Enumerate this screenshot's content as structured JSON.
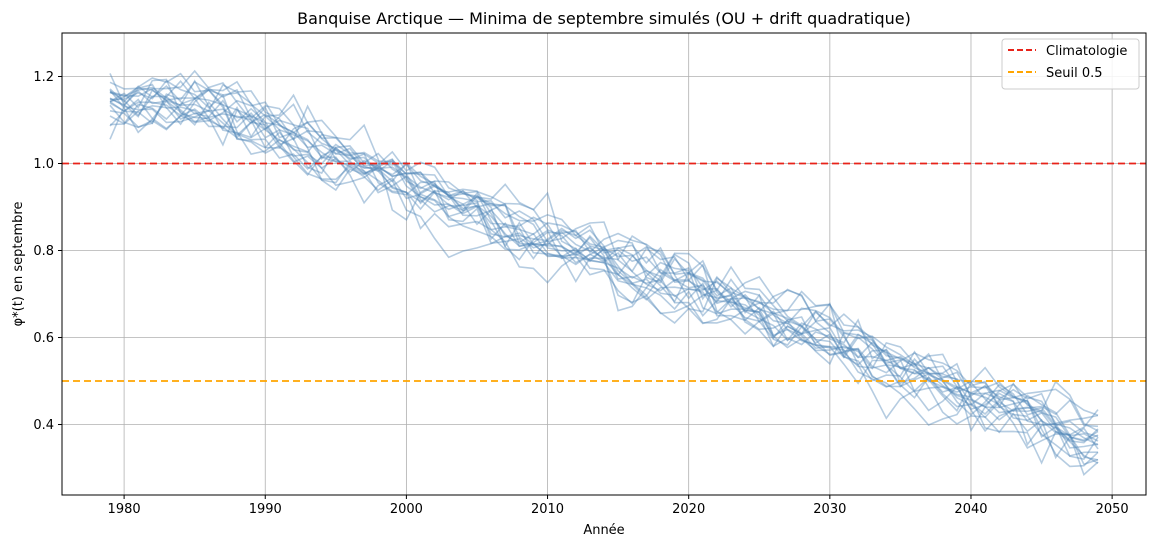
{
  "chart_data": {
    "type": "line",
    "title": "Banquise Arctique — Minima de septembre simulés (OU + drift quadratique)",
    "xlabel": "Année",
    "ylabel": "φ*(t) en septembre",
    "xlim": [
      1975.6,
      2052.4
    ],
    "ylim": [
      0.238,
      1.3
    ],
    "x_ticks": [
      1980,
      1990,
      2000,
      2010,
      2020,
      2030,
      2040,
      2050
    ],
    "y_ticks": [
      0.4,
      0.6,
      0.8,
      1.0,
      1.2
    ],
    "grid": true,
    "legend_position": "top-right",
    "x_start": 1979,
    "x_end": 2049,
    "trajectory_count": 20,
    "trajectory_color": "#4f86b8",
    "mean_path": {
      "x": [
        1979,
        1985,
        1990,
        1995,
        2000,
        2005,
        2010,
        2015,
        2020,
        2025,
        2030,
        2035,
        2040,
        2045,
        2049
      ],
      "y": [
        1.13,
        1.14,
        1.08,
        1.01,
        0.96,
        0.89,
        0.82,
        0.77,
        0.72,
        0.67,
        0.6,
        0.53,
        0.47,
        0.41,
        0.36
      ]
    },
    "reference_lines": [
      {
        "name": "Climatologie",
        "value": 1.0,
        "color": "#e8231a",
        "style": "dashed"
      },
      {
        "name": "Seuil 0.5",
        "value": 0.5,
        "color": "#ffa500",
        "style": "dashed"
      }
    ]
  }
}
